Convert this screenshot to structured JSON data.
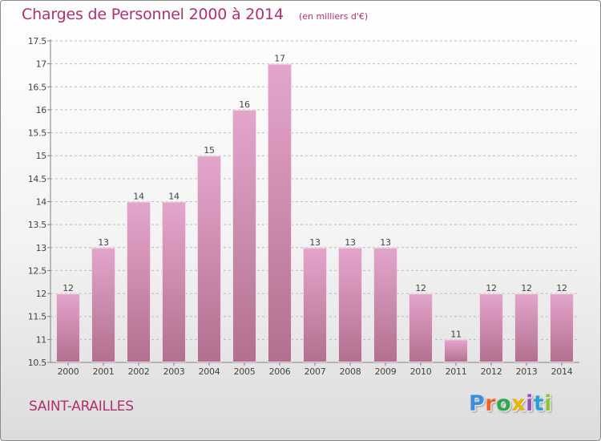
{
  "header": {
    "title": "Charges de Personnel 2000 à 2014",
    "subtitle": "(en milliers d'€)"
  },
  "place": "SAINT-ARAILLES",
  "logo": {
    "text": "Proxiti",
    "letter_colors": [
      "#3a8fd8",
      "#e8622a",
      "#2ea84a",
      "#e8b400",
      "#9a4fc0",
      "#2a9fd8",
      "#8bc43f"
    ]
  },
  "colors": {
    "accent": "#b0306e",
    "bar_top": "#e3a6cb",
    "bar_bottom": "#b2708f",
    "bar_edge": "#f4d7e8",
    "axis": "#808080",
    "grid": "#bcbcbc"
  },
  "chart_data": {
    "type": "bar",
    "title": "Charges de Personnel 2000 à 2014",
    "subtitle": "(en milliers d'€)",
    "xlabel": "",
    "ylabel": "",
    "categories": [
      "2000",
      "2001",
      "2002",
      "2003",
      "2004",
      "2005",
      "2006",
      "2007",
      "2008",
      "2009",
      "2010",
      "2011",
      "2012",
      "2013",
      "2014"
    ],
    "values": [
      12,
      13,
      14,
      14,
      15,
      16,
      17,
      13,
      13,
      13,
      12,
      11,
      12,
      12,
      12
    ],
    "data_labels": [
      "12",
      "13",
      "14",
      "14",
      "15",
      "16",
      "17",
      "13",
      "13",
      "13",
      "12",
      "11",
      "12",
      "12",
      "12"
    ],
    "ylim": [
      10.5,
      17.5
    ],
    "yticks": [
      "10.5",
      "11",
      "11.5",
      "12",
      "12.5",
      "13",
      "13.5",
      "14",
      "14.5",
      "15",
      "15.5",
      "16",
      "16.5",
      "17",
      "17.5"
    ],
    "grid": "horizontal-dashed",
    "legend": "none"
  }
}
